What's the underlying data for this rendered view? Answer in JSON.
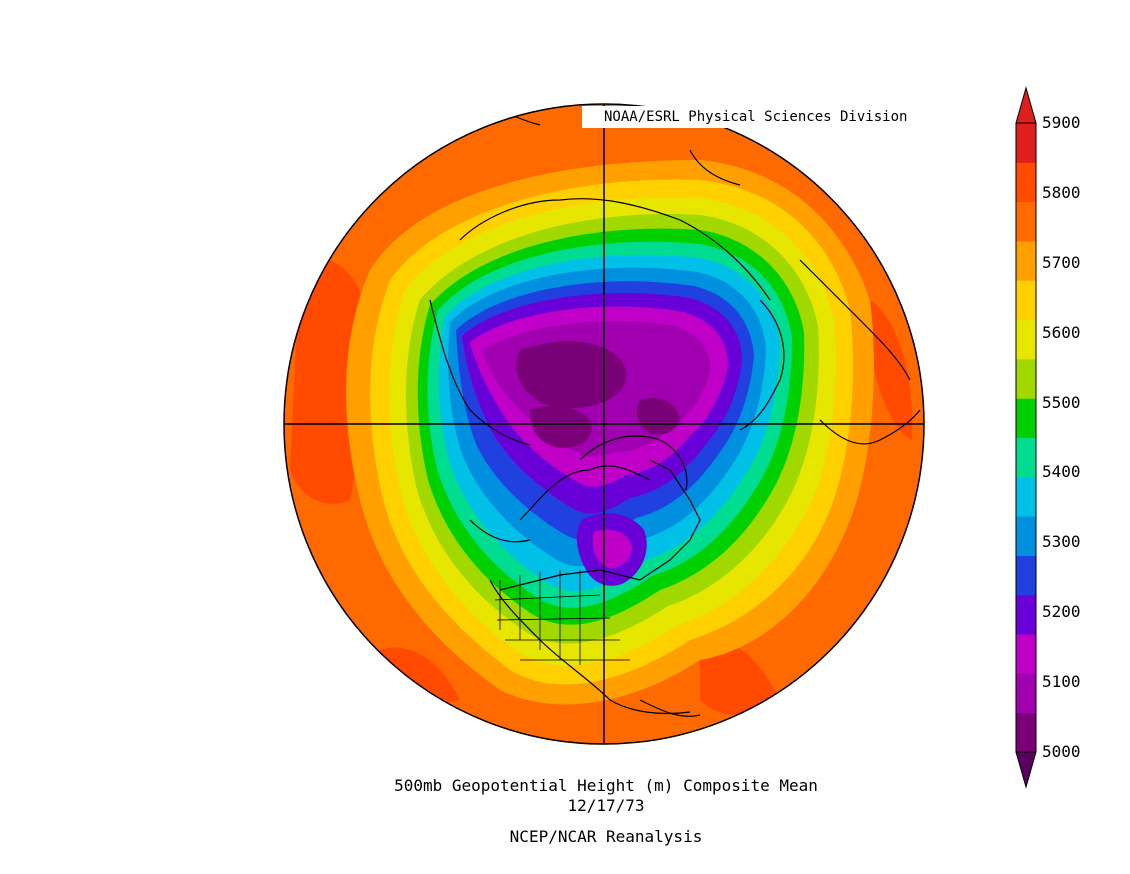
{
  "credit": "NOAA/ESRL Physical Sciences Division",
  "caption": {
    "title": "500mb Geopotential Height (m) Composite Mean",
    "date": "12/17/73",
    "source": "NCEP/NCAR Reanalysis"
  },
  "colorbar": {
    "labels": [
      "5900",
      "5800",
      "5700",
      "5600",
      "5500",
      "5400",
      "5300",
      "5200",
      "5100",
      "5000"
    ],
    "colors": [
      "#7a0077",
      "#a000b0",
      "#c000c8",
      "#6a00d8",
      "#2040e0",
      "#0090e0",
      "#00c0e8",
      "#00dc90",
      "#00d000",
      "#a0d800",
      "#e6e600",
      "#ffd000",
      "#ffa000",
      "#ff6a00",
      "#ff4a00",
      "#e01e1e"
    ]
  },
  "map": {
    "projection": "north polar stereographic",
    "variable": "500mb geopotential height",
    "units": "m"
  }
}
